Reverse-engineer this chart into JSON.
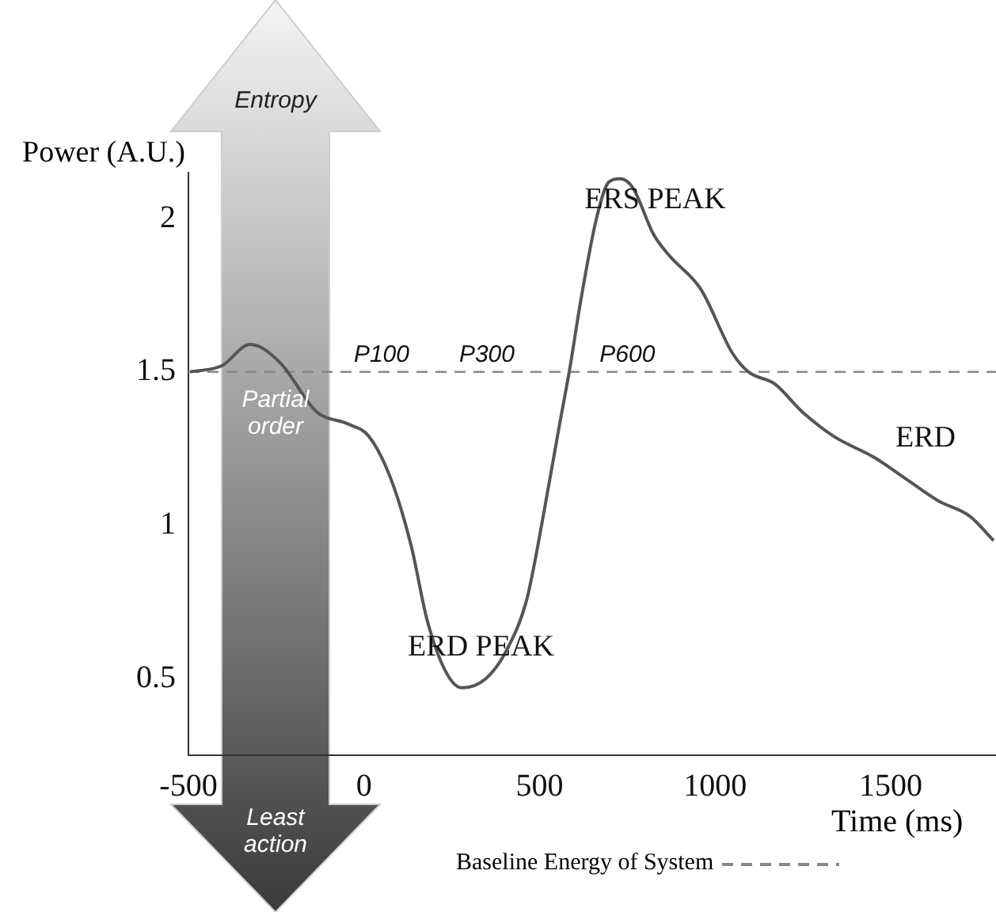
{
  "chart_data": {
    "type": "line",
    "xlabel": "Time (ms)",
    "ylabel": "Power (A.U.)",
    "x": [
      -495,
      -405,
      -324,
      -239,
      -135,
      -45,
      14,
      77,
      135,
      180,
      234,
      279,
      347,
      405,
      464,
      509,
      554,
      586,
      617,
      662,
      698,
      730,
      766,
      824,
      869,
      959,
      1050,
      1095,
      1171,
      1248,
      1338,
      1455,
      1545,
      1635,
      1725,
      1793
    ],
    "values": [
      1.5,
      1.52,
      1.59,
      1.53,
      1.37,
      1.33,
      1.29,
      1.15,
      0.93,
      0.69,
      0.52,
      0.47,
      0.5,
      0.59,
      0.76,
      1.02,
      1.31,
      1.51,
      1.73,
      2.0,
      2.12,
      2.13,
      2.1,
      1.95,
      1.88,
      1.77,
      1.56,
      1.5,
      1.46,
      1.37,
      1.29,
      1.22,
      1.15,
      1.08,
      1.03,
      0.95
    ],
    "color": "#555555",
    "marker": "none",
    "grid": false,
    "xlim": [
      -500,
      1800
    ],
    "ylim": [
      0.25,
      2.15
    ],
    "xticks": [
      -500,
      0,
      500,
      1000,
      1500
    ],
    "yticks": [
      0.5,
      1,
      1.5,
      2
    ],
    "ref_lines": [
      {
        "axis": "y",
        "value": 1.5,
        "label": "Baseline Energy of System",
        "color": "#888888",
        "line_style": "dashed"
      }
    ],
    "annotations": [
      "Entropy",
      "Partial order",
      "Least action",
      {
        "text": "P100",
        "x": 50,
        "y": 1.5
      },
      {
        "text": "P300",
        "x": 350,
        "y": 1.5
      },
      {
        "text": "P600",
        "x": 750,
        "y": 1.5
      },
      {
        "text": "ERS PEAK",
        "x": 730,
        "y": 2.13
      },
      {
        "text": "ERD PEAK",
        "x": 279,
        "y": 0.47
      },
      {
        "text": "ERD",
        "x": 1545,
        "y": 1.15
      }
    ]
  }
}
